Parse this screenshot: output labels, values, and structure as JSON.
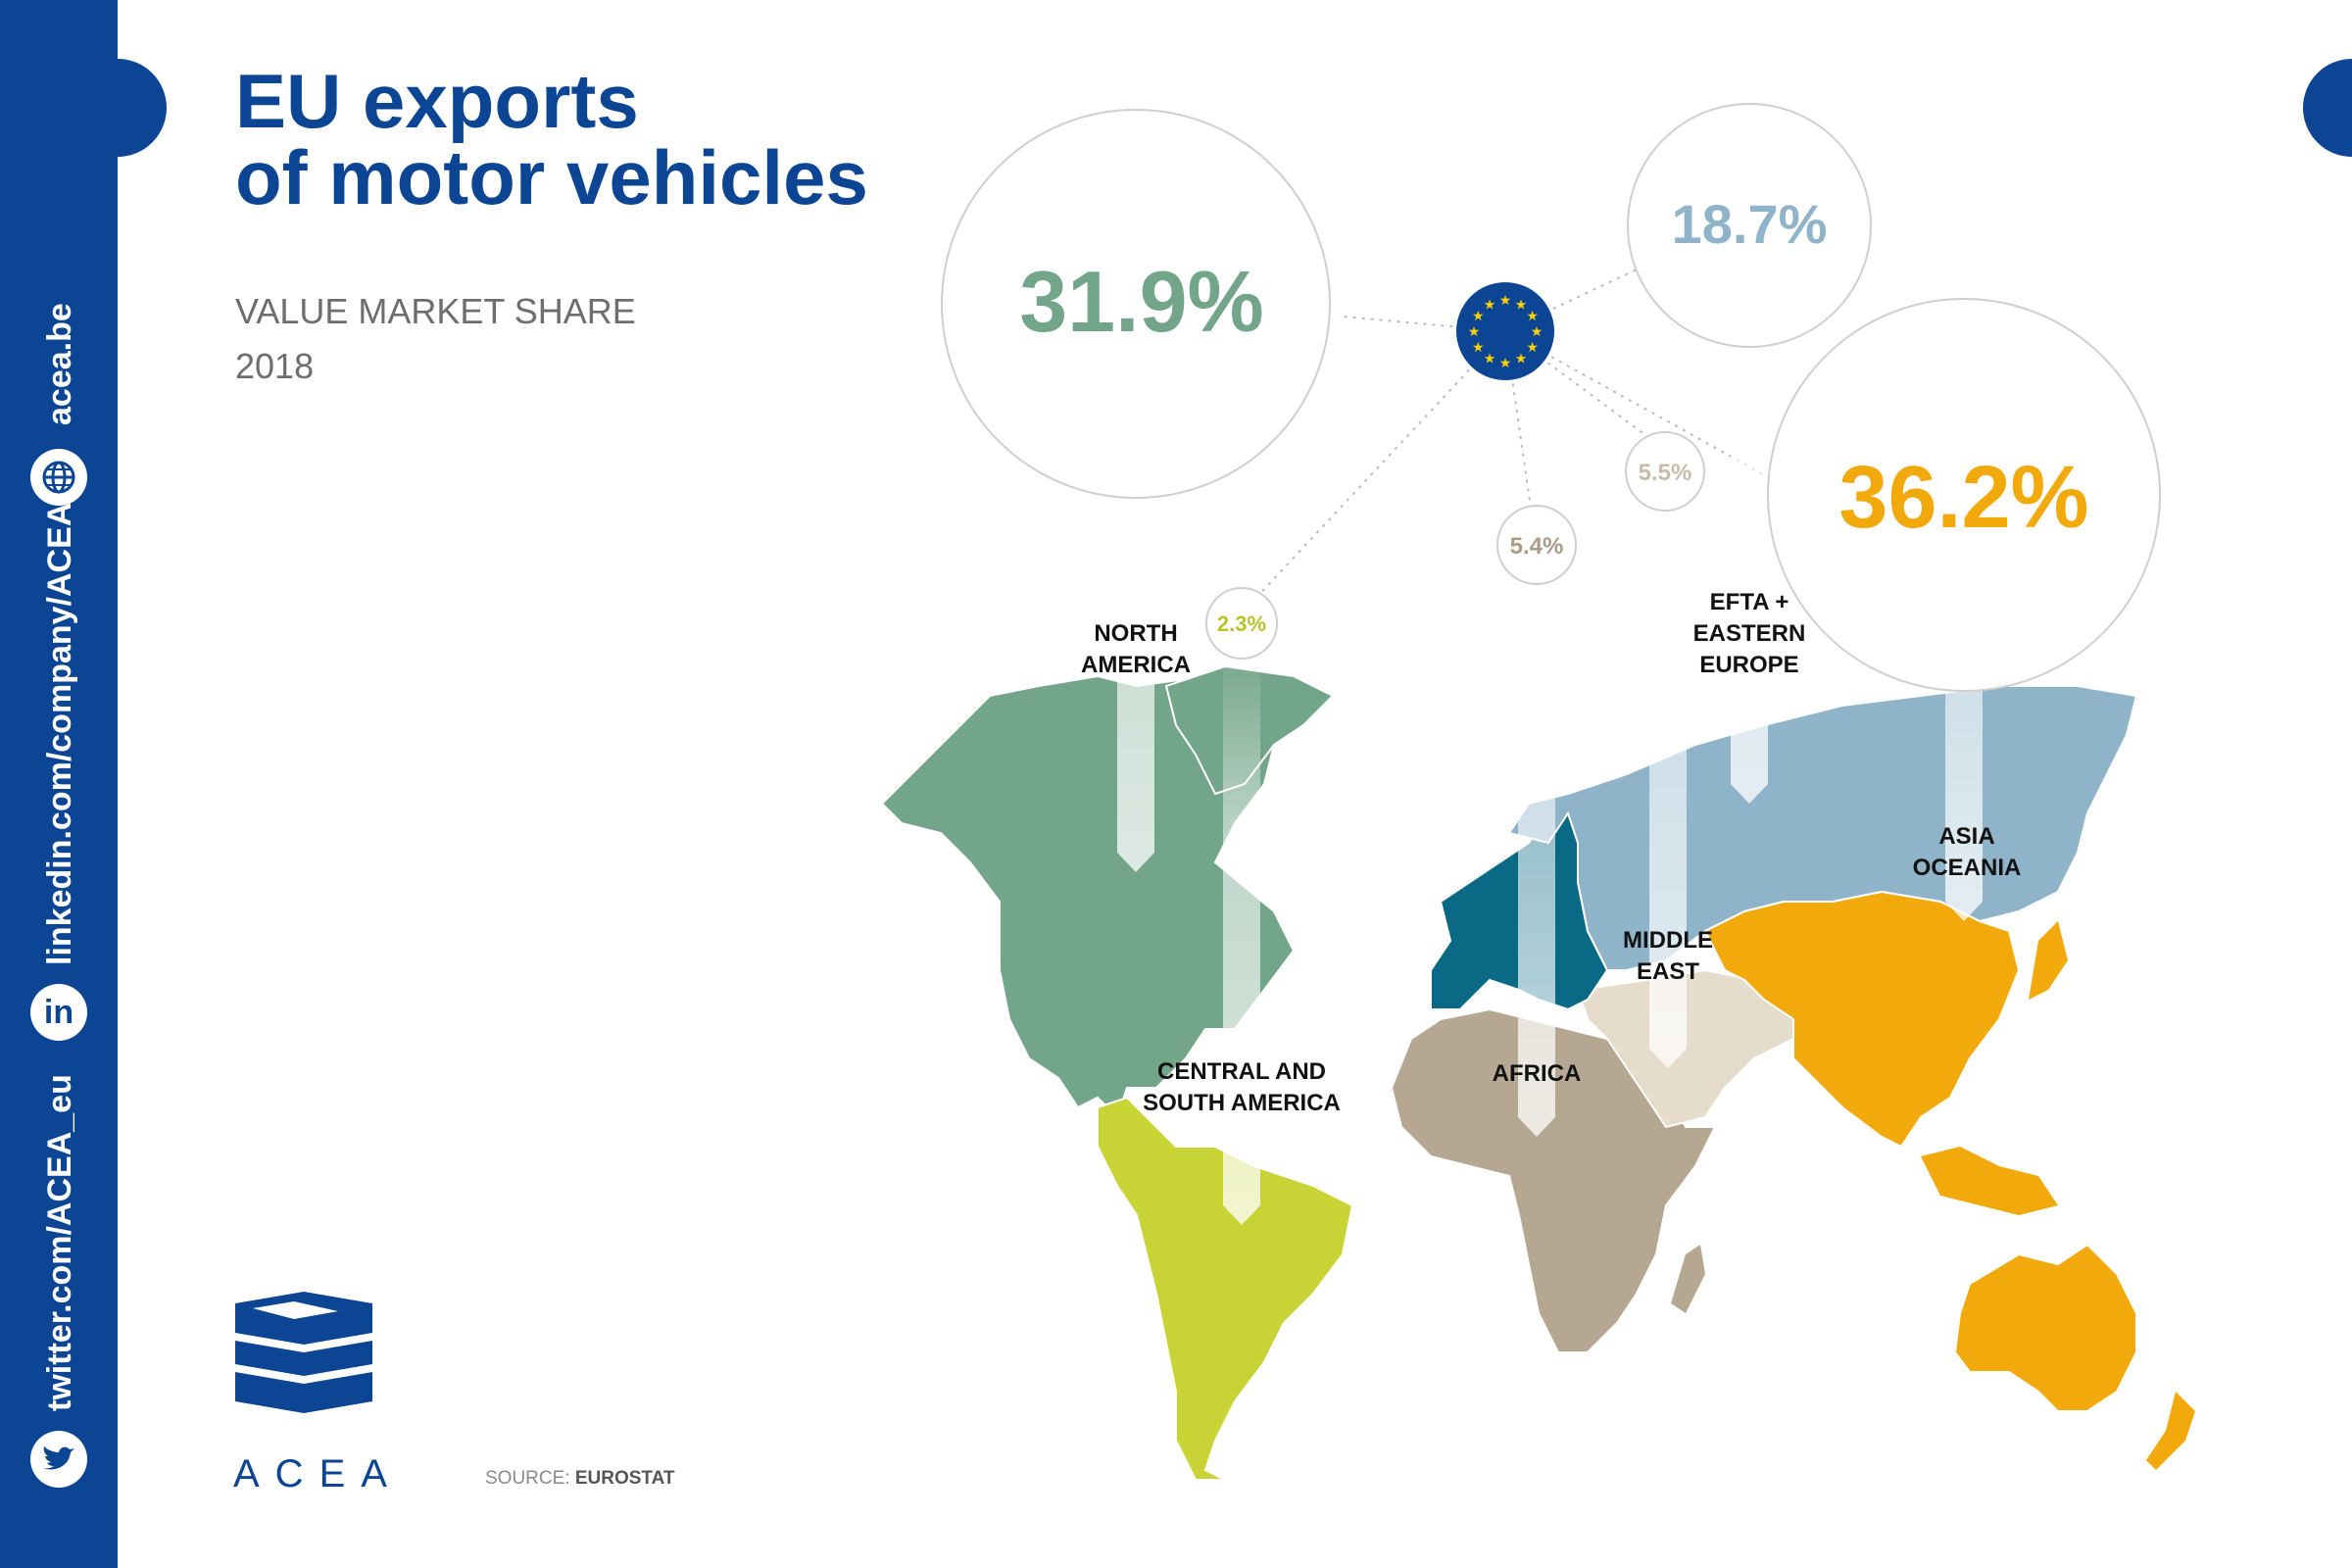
{
  "header": {
    "title_line1": "EU exports",
    "title_line2": "of motor vehicles",
    "subtitle": "VALUE MARKET SHARE",
    "year": "2018"
  },
  "sidebar": {
    "website": "acea.be",
    "linkedin": "linkedin.com/company/ACEA",
    "twitter": "twitter.com/ACEA_eu",
    "icons": [
      "globe-icon",
      "linkedin-icon",
      "twitter-icon"
    ]
  },
  "logo": {
    "text": "ACEA"
  },
  "source": {
    "prefix": "SOURCE:",
    "name": "EUROSTAT"
  },
  "chart_data": {
    "type": "map",
    "title": "EU exports of motor vehicles",
    "subtitle": "VALUE MARKET SHARE 2018",
    "regions": [
      {
        "name": "NORTH AMERICA",
        "value": 31.9,
        "label": "31.9%",
        "color": "#73a58a"
      },
      {
        "name": "CENTRAL AND SOUTH AMERICA",
        "value": 2.3,
        "label": "2.3%",
        "color": "#c8d435"
      },
      {
        "name": "AFRICA",
        "value": 5.4,
        "label": "5.4%",
        "color": "#b5a791"
      },
      {
        "name": "MIDDLE EAST",
        "value": 5.5,
        "label": "5.5%",
        "color": "#e6dccb"
      },
      {
        "name": "EFTA + EASTERN EUROPE",
        "value": 18.7,
        "label": "18.7%",
        "color": "#8fb4c9"
      },
      {
        "name": "ASIA OCEANIA",
        "value": 36.2,
        "label": "36.2%",
        "color": "#f1a90b"
      }
    ],
    "origin": "EU",
    "eu_color": "#0a6a86"
  },
  "map_labels": {
    "north_america": [
      "NORTH",
      "AMERICA"
    ],
    "south_america": [
      "CENTRAL AND",
      "SOUTH AMERICA"
    ],
    "africa": [
      "AFRICA"
    ],
    "middle_east": [
      "MIDDLE",
      "EAST"
    ],
    "efta": [
      "EFTA +",
      "EASTERN",
      "EUROPE"
    ],
    "asia": [
      "ASIA",
      "OCEANIA"
    ]
  }
}
